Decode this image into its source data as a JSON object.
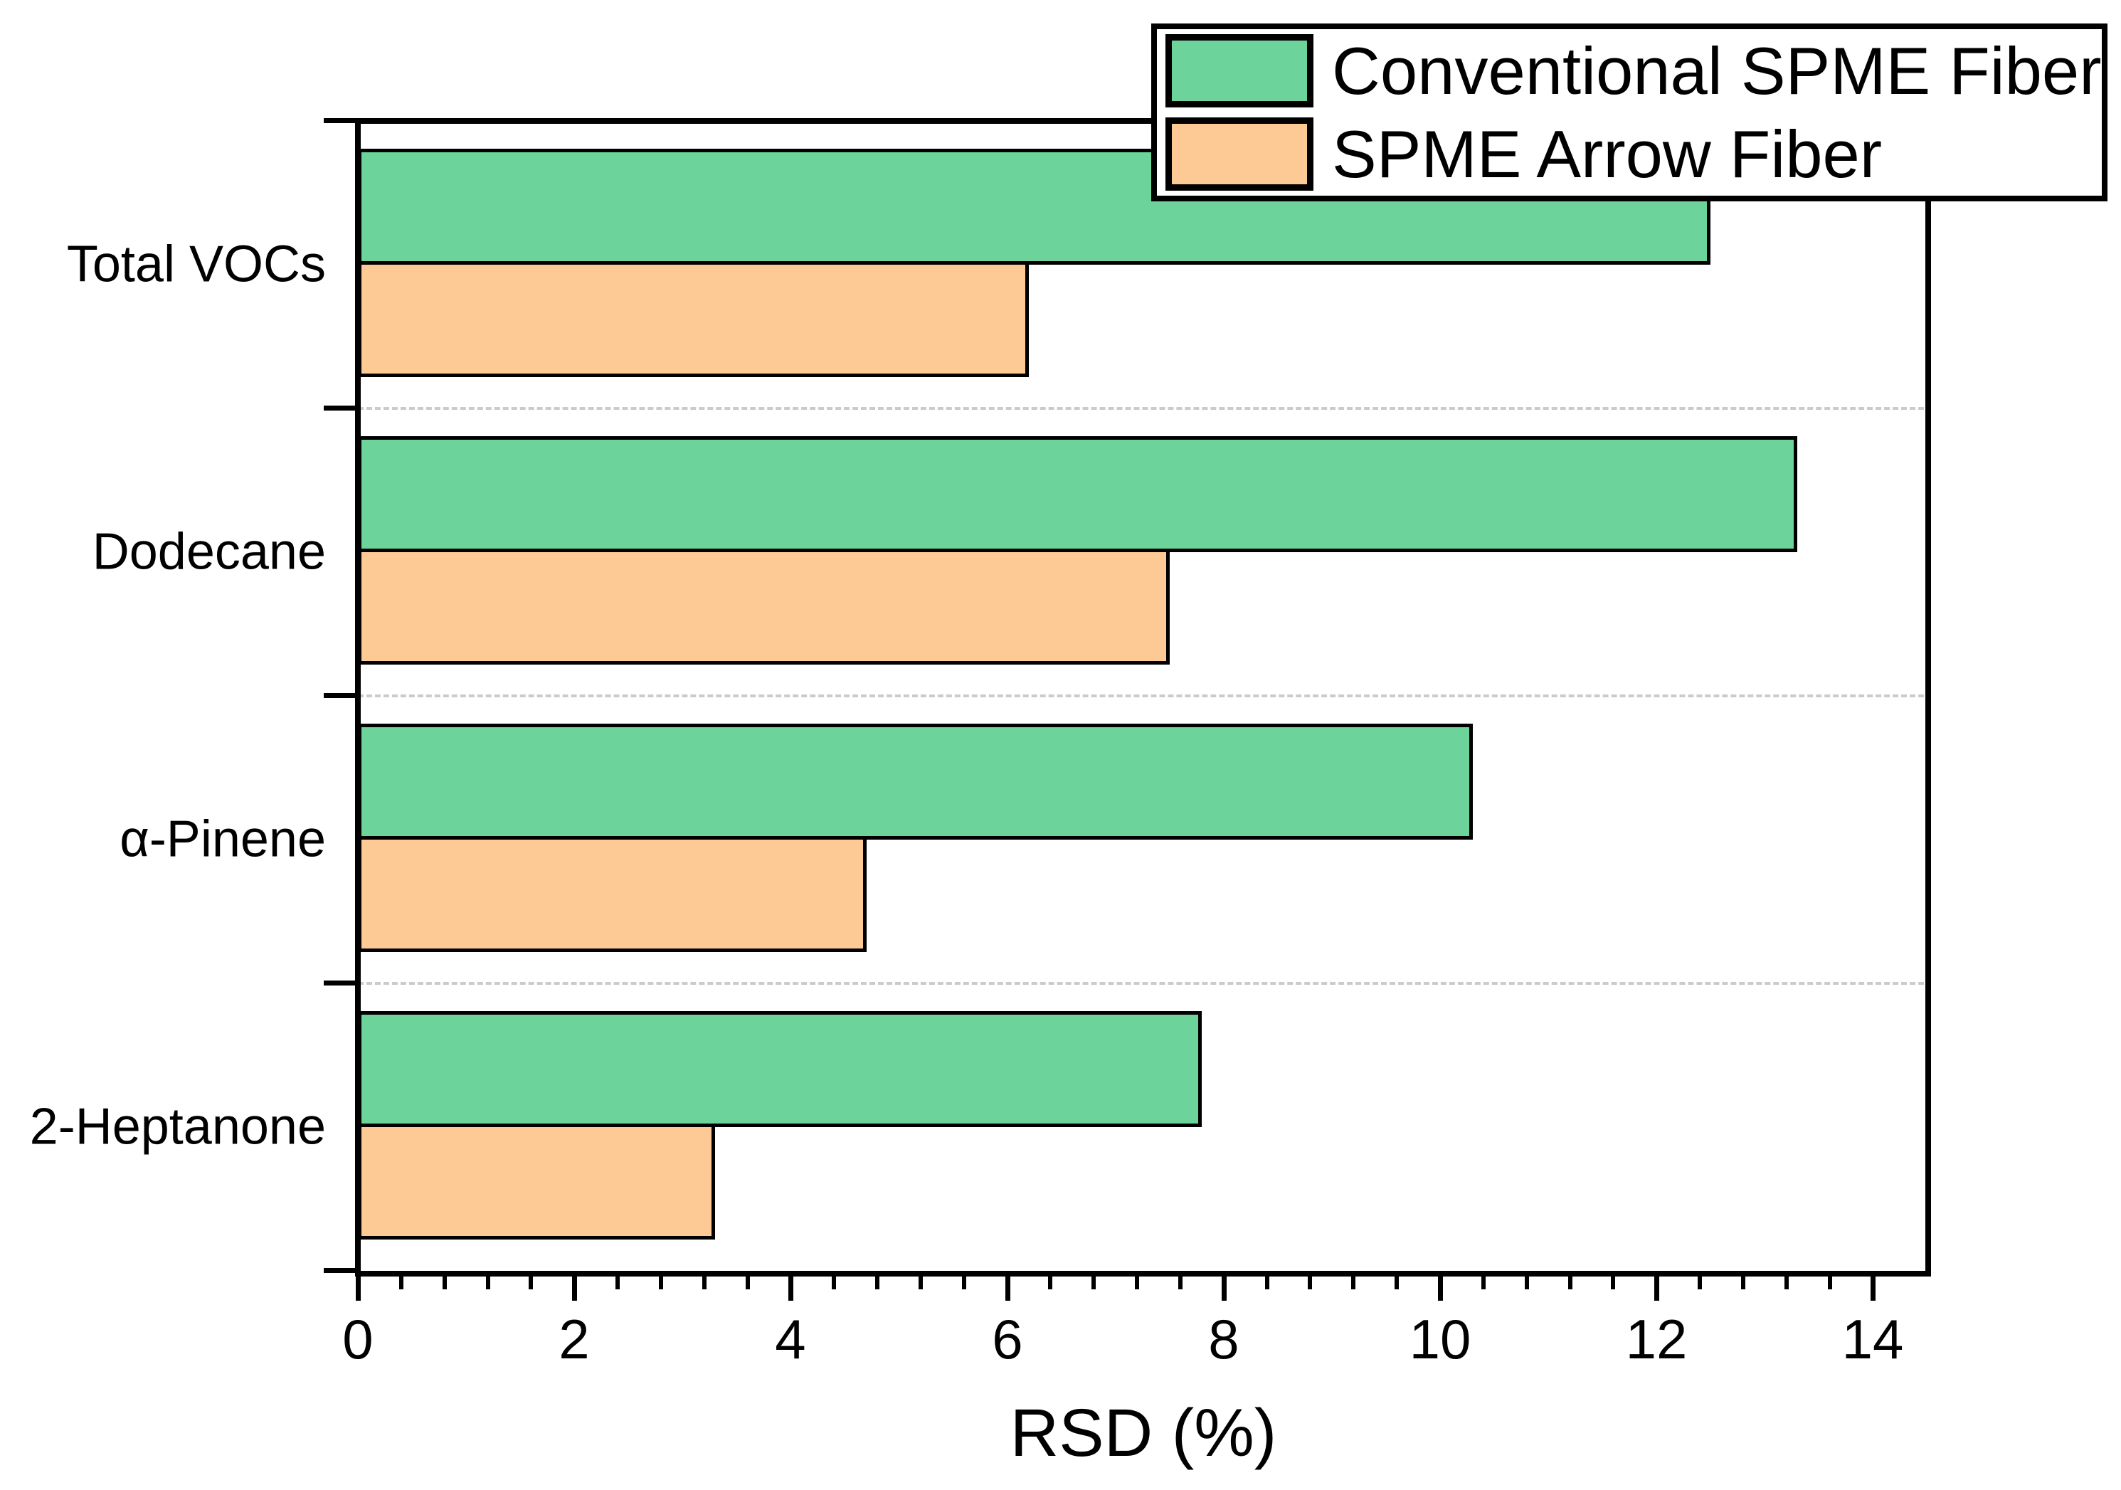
{
  "chart_data": {
    "type": "bar",
    "orientation": "horizontal",
    "title": "",
    "xlabel": "RSD (%)",
    "ylabel": "",
    "categories": [
      "Total VOCs",
      "Dodecane",
      "α-Pinene",
      "2-Heptanone"
    ],
    "series": [
      {
        "name": "Conventional SPME Fiber",
        "color": "#6CD39B",
        "values": [
          12.5,
          13.3,
          10.3,
          7.8
        ]
      },
      {
        "name": "SPME Arrow Fiber",
        "color": "#FDC995",
        "values": [
          6.2,
          7.5,
          4.7,
          3.3
        ]
      }
    ],
    "xlim": [
      0,
      14.5
    ],
    "x_major_ticks": [
      0,
      2,
      4,
      6,
      8,
      10,
      12,
      14
    ],
    "x_minor_tick_step": 0.4,
    "grid": "dashed gray horizontal lines at category boundaries",
    "gridline_color": "#cbcbcb",
    "bar_edge_color": "#000000",
    "axis_color": "#000000",
    "legend_position": "top-right",
    "legend_border_color": "#000000",
    "background_color": "#ffffff"
  },
  "legend": {
    "items": [
      {
        "label": "Conventional SPME Fiber",
        "color": "#6CD39B"
      },
      {
        "label": "SPME Arrow Fiber",
        "color": "#FDC995"
      }
    ]
  },
  "xaxis": {
    "title": "RSD (%)"
  }
}
